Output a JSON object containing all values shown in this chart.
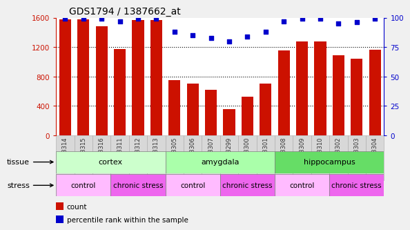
{
  "title": "GDS1794 / 1387662_at",
  "samples": [
    "GSM53314",
    "GSM53315",
    "GSM53316",
    "GSM53311",
    "GSM53312",
    "GSM53313",
    "GSM53305",
    "GSM53306",
    "GSM53307",
    "GSM53299",
    "GSM53300",
    "GSM53301",
    "GSM53308",
    "GSM53309",
    "GSM53310",
    "GSM53302",
    "GSM53303",
    "GSM53304"
  ],
  "counts": [
    1580,
    1580,
    1480,
    1175,
    1565,
    1570,
    750,
    700,
    620,
    360,
    530,
    700,
    1150,
    1280,
    1280,
    1090,
    1040,
    1160
  ],
  "percentile": [
    99,
    99,
    99,
    97,
    99,
    99,
    88,
    85,
    83,
    80,
    84,
    88,
    97,
    99,
    99,
    95,
    96,
    99
  ],
  "ylim_left": [
    0,
    1600
  ],
  "ylim_right": [
    0,
    100
  ],
  "yticks_left": [
    0,
    400,
    800,
    1200,
    1600
  ],
  "yticks_right": [
    0,
    25,
    50,
    75,
    100
  ],
  "bar_color": "#cc1100",
  "dot_color": "#0000cc",
  "tissue_groups": [
    {
      "label": "cortex",
      "start": 0,
      "end": 6,
      "color": "#ccffcc"
    },
    {
      "label": "amygdala",
      "start": 6,
      "end": 12,
      "color": "#aaffaa"
    },
    {
      "label": "hippocampus",
      "start": 12,
      "end": 18,
      "color": "#66dd66"
    }
  ],
  "stress_groups": [
    {
      "label": "control",
      "start": 0,
      "end": 3,
      "color": "#ffbbff"
    },
    {
      "label": "chronic stress",
      "start": 3,
      "end": 6,
      "color": "#ee66ee"
    },
    {
      "label": "control",
      "start": 6,
      "end": 9,
      "color": "#ffbbff"
    },
    {
      "label": "chronic stress",
      "start": 9,
      "end": 12,
      "color": "#ee66ee"
    },
    {
      "label": "control",
      "start": 12,
      "end": 15,
      "color": "#ffbbff"
    },
    {
      "label": "chronic stress",
      "start": 15,
      "end": 18,
      "color": "#ee66ee"
    }
  ],
  "fig_bg": "#f0f0f0",
  "plot_bg": "#ffffff",
  "xtick_bg": "#d8d8d8"
}
